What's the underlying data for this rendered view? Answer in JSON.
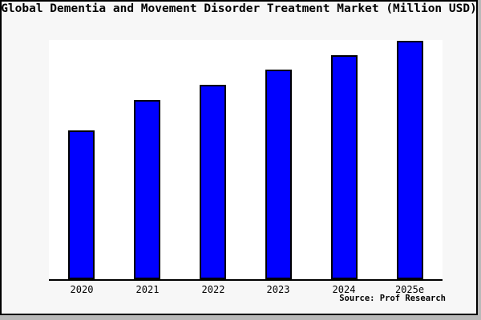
{
  "window": {
    "outer_bg": "#b9b9b9",
    "card_bg": "#f7f7f7",
    "card_border_color": "#000000"
  },
  "chart_data": {
    "type": "bar",
    "title": "Global Dementia and Movement Disorder Treatment Market (Million USD)",
    "categories": [
      "2020",
      "2021",
      "2022",
      "2023",
      "2024",
      "2025e"
    ],
    "values": [
      62.4,
      75.2,
      81.5,
      87.9,
      94.0,
      100.0
    ],
    "ylim": [
      0,
      100.3
    ],
    "xlabel": "",
    "ylabel": "",
    "grid": false,
    "legend": false,
    "plot_bg": "#ffffff",
    "bar_color": "#0000ff",
    "bar_edge_color": "#000000",
    "axis_color": "#000000",
    "source": "Source: Prof Research"
  }
}
